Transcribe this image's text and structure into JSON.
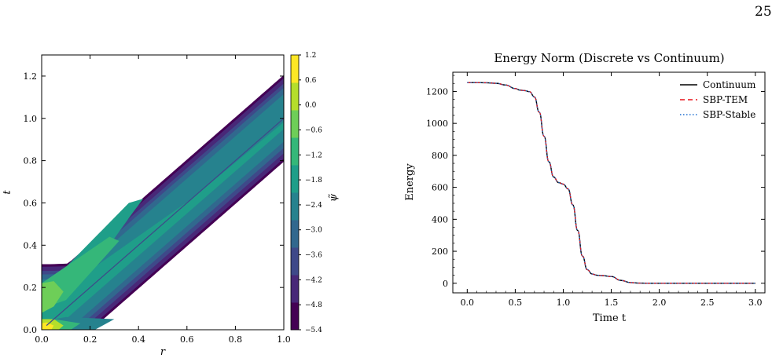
{
  "page": {
    "number": "25"
  },
  "chart_data": [
    {
      "type": "heatmap",
      "subtype": "filled-contour",
      "title": "",
      "xlabel": "r",
      "ylabel": "t",
      "xlim": [
        0.0,
        1.0
      ],
      "ylim": [
        0.0,
        1.3
      ],
      "x_ticks": [
        "0.0",
        "0.2",
        "0.4",
        "0.6",
        "0.8",
        "1.0"
      ],
      "y_ticks": [
        "0.0",
        "0.2",
        "0.4",
        "0.6",
        "0.8",
        "1.0",
        "1.2"
      ],
      "colorbar": {
        "label": "ψ̃",
        "range": [
          -5.4,
          1.2
        ],
        "ticks": [
          "1.2",
          "0.6",
          "0.0",
          "−0.6",
          "−1.2",
          "−1.8",
          "−2.4",
          "−3.0",
          "−3.6",
          "−4.2",
          "−4.8",
          "−5.4"
        ],
        "colormap": "viridis",
        "colors": [
          "#440154",
          "#482878",
          "#3e4989",
          "#31688e",
          "#26828e",
          "#1f9e89",
          "#35b779",
          "#6ece58",
          "#b5de2b",
          "#fde725"
        ]
      },
      "features": {
        "light_cone_center_line": "t = r",
        "outgoing_band_upper_edge": "t ≈ r + 0.2",
        "outgoing_band_lower_edge": "t ≈ r − 0.2",
        "initial_pulse_near": [
          0.0,
          0.05
        ]
      }
    },
    {
      "type": "line",
      "title": "Energy Norm (Discrete vs Continuum)",
      "xlabel": "Time t",
      "ylabel": "Energy",
      "xlim": [
        -0.15,
        3.1
      ],
      "ylim": [
        -60,
        1320
      ],
      "x_ticks": [
        "0.0",
        "0.5",
        "1.0",
        "1.5",
        "2.0",
        "2.5",
        "3.0"
      ],
      "y_ticks": [
        "0",
        "200",
        "400",
        "600",
        "800",
        "1000",
        "1200"
      ],
      "legend_position": "top-right",
      "x": [
        0.0,
        0.1,
        0.2,
        0.3,
        0.4,
        0.5,
        0.55,
        0.6,
        0.65,
        0.7,
        0.75,
        0.8,
        0.85,
        0.9,
        0.95,
        1.0,
        1.05,
        1.1,
        1.15,
        1.2,
        1.25,
        1.3,
        1.35,
        1.4,
        1.5,
        1.6,
        1.7,
        1.8,
        1.9,
        2.0,
        2.5,
        3.0
      ],
      "series": [
        {
          "name": "Continuum",
          "color": "#000000",
          "dash": "solid",
          "values": [
            1255,
            1255,
            1254,
            1251,
            1240,
            1218,
            1208,
            1205,
            1198,
            1165,
            1070,
            920,
            760,
            665,
            630,
            620,
            590,
            490,
            330,
            170,
            85,
            58,
            50,
            48,
            42,
            18,
            4,
            1,
            0,
            0,
            0,
            0
          ]
        },
        {
          "name": "SBP-TEM",
          "color": "#e8121a",
          "dash": "6,4",
          "values": [
            1255,
            1255,
            1254,
            1251,
            1240,
            1218,
            1208,
            1205,
            1198,
            1165,
            1070,
            920,
            760,
            665,
            630,
            620,
            590,
            490,
            330,
            170,
            85,
            58,
            50,
            48,
            42,
            18,
            4,
            1,
            0,
            0,
            0,
            0
          ]
        },
        {
          "name": "SBP-Stable",
          "color": "#1f6fd0",
          "dash": "1.5,2.5",
          "values": [
            1255,
            1255,
            1254,
            1251,
            1240,
            1218,
            1208,
            1205,
            1198,
            1165,
            1070,
            920,
            760,
            665,
            630,
            620,
            590,
            490,
            330,
            170,
            85,
            58,
            50,
            48,
            42,
            18,
            4,
            1,
            0,
            0,
            0,
            0
          ]
        }
      ]
    }
  ]
}
